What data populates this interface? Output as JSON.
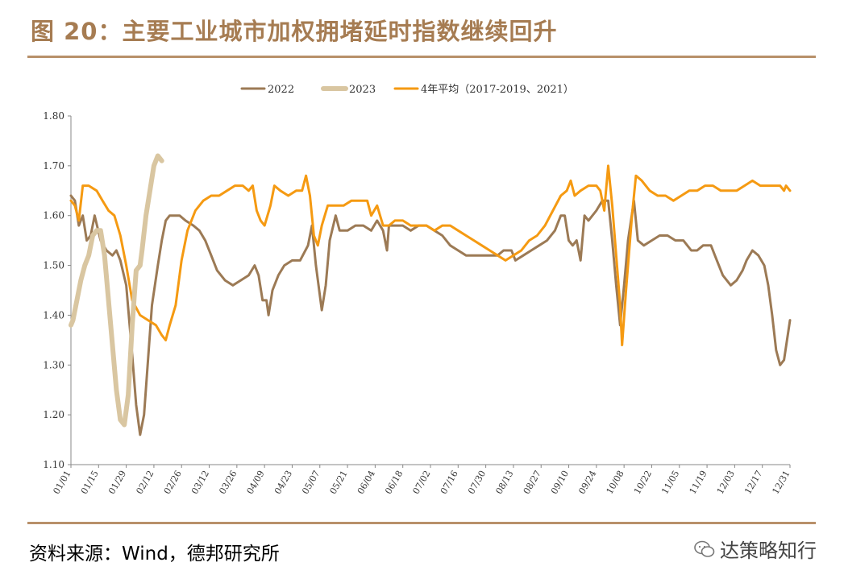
{
  "header": {
    "title": "图 20：主要工业城市加权拥堵延时指数继续回升"
  },
  "footer": {
    "source": "资料来源：Wind，德邦研究所",
    "watermark": "达策略知行"
  },
  "chart_data": {
    "type": "line",
    "xlabel": "",
    "ylabel": "",
    "ylim": [
      1.1,
      1.8
    ],
    "yticks": [
      "1.10",
      "1.20",
      "1.30",
      "1.40",
      "1.50",
      "1.60",
      "1.70",
      "1.80"
    ],
    "x_domain": [
      "01/01",
      "12/31"
    ],
    "x_ticks": [
      "01/01",
      "01/15",
      "01/29",
      "02/12",
      "02/26",
      "03/12",
      "03/26",
      "04/09",
      "04/23",
      "05/07",
      "05/21",
      "06/04",
      "06/18",
      "07/02",
      "07/16",
      "07/30",
      "08/13",
      "08/27",
      "09/10",
      "09/24",
      "10/08",
      "10/22",
      "11/05",
      "11/19",
      "12/03",
      "12/17",
      "12/31"
    ],
    "legend_position": "top",
    "grid": false,
    "series": [
      {
        "name": "2022",
        "color": "#9c7a55",
        "points": [
          [
            "01/01",
            1.64
          ],
          [
            "01/03",
            1.63
          ],
          [
            "01/05",
            1.58
          ],
          [
            "01/07",
            1.6
          ],
          [
            "01/09",
            1.55
          ],
          [
            "01/11",
            1.56
          ],
          [
            "01/13",
            1.6
          ],
          [
            "01/16",
            1.55
          ],
          [
            "01/19",
            1.53
          ],
          [
            "01/22",
            1.52
          ],
          [
            "01/24",
            1.53
          ],
          [
            "01/26",
            1.51
          ],
          [
            "01/29",
            1.46
          ],
          [
            "02/01",
            1.32
          ],
          [
            "02/03",
            1.22
          ],
          [
            "02/05",
            1.16
          ],
          [
            "02/07",
            1.2
          ],
          [
            "02/09",
            1.31
          ],
          [
            "02/11",
            1.42
          ],
          [
            "02/14",
            1.5
          ],
          [
            "02/16",
            1.55
          ],
          [
            "02/18",
            1.59
          ],
          [
            "02/20",
            1.6
          ],
          [
            "02/22",
            1.6
          ],
          [
            "02/25",
            1.6
          ],
          [
            "02/28",
            1.59
          ],
          [
            "03/04",
            1.58
          ],
          [
            "03/07",
            1.57
          ],
          [
            "03/10",
            1.55
          ],
          [
            "03/13",
            1.52
          ],
          [
            "03/16",
            1.49
          ],
          [
            "03/20",
            1.47
          ],
          [
            "03/24",
            1.46
          ],
          [
            "03/28",
            1.47
          ],
          [
            "04/01",
            1.48
          ],
          [
            "04/04",
            1.5
          ],
          [
            "04/06",
            1.48
          ],
          [
            "04/08",
            1.43
          ],
          [
            "04/10",
            1.43
          ],
          [
            "04/11",
            1.4
          ],
          [
            "04/13",
            1.45
          ],
          [
            "04/16",
            1.48
          ],
          [
            "04/19",
            1.5
          ],
          [
            "04/23",
            1.51
          ],
          [
            "04/27",
            1.51
          ],
          [
            "05/01",
            1.54
          ],
          [
            "05/03",
            1.58
          ],
          [
            "05/05",
            1.5
          ],
          [
            "05/08",
            1.41
          ],
          [
            "05/10",
            1.46
          ],
          [
            "05/12",
            1.55
          ],
          [
            "05/15",
            1.6
          ],
          [
            "05/17",
            1.57
          ],
          [
            "05/21",
            1.57
          ],
          [
            "05/25",
            1.58
          ],
          [
            "05/29",
            1.58
          ],
          [
            "06/02",
            1.57
          ],
          [
            "06/05",
            1.59
          ],
          [
            "06/08",
            1.57
          ],
          [
            "06/10",
            1.53
          ],
          [
            "06/11",
            1.58
          ],
          [
            "06/14",
            1.58
          ],
          [
            "06/18",
            1.58
          ],
          [
            "06/22",
            1.57
          ],
          [
            "06/26",
            1.58
          ],
          [
            "06/30",
            1.58
          ],
          [
            "07/04",
            1.57
          ],
          [
            "07/08",
            1.56
          ],
          [
            "07/12",
            1.54
          ],
          [
            "07/16",
            1.53
          ],
          [
            "07/20",
            1.52
          ],
          [
            "07/24",
            1.52
          ],
          [
            "07/28",
            1.52
          ],
          [
            "08/01",
            1.52
          ],
          [
            "08/05",
            1.52
          ],
          [
            "08/08",
            1.53
          ],
          [
            "08/10",
            1.53
          ],
          [
            "08/12",
            1.53
          ],
          [
            "08/14",
            1.51
          ],
          [
            "08/18",
            1.52
          ],
          [
            "08/22",
            1.53
          ],
          [
            "08/26",
            1.54
          ],
          [
            "08/30",
            1.55
          ],
          [
            "09/03",
            1.57
          ],
          [
            "09/06",
            1.6
          ],
          [
            "09/08",
            1.6
          ],
          [
            "09/10",
            1.55
          ],
          [
            "09/12",
            1.54
          ],
          [
            "09/14",
            1.55
          ],
          [
            "09/16",
            1.51
          ],
          [
            "09/18",
            1.6
          ],
          [
            "09/20",
            1.59
          ],
          [
            "09/24",
            1.61
          ],
          [
            "09/27",
            1.63
          ],
          [
            "09/30",
            1.63
          ],
          [
            "10/02",
            1.55
          ],
          [
            "10/04",
            1.46
          ],
          [
            "10/06",
            1.38
          ],
          [
            "10/08",
            1.46
          ],
          [
            "10/10",
            1.55
          ],
          [
            "10/13",
            1.63
          ],
          [
            "10/15",
            1.55
          ],
          [
            "10/18",
            1.54
          ],
          [
            "10/22",
            1.55
          ],
          [
            "10/26",
            1.56
          ],
          [
            "10/30",
            1.56
          ],
          [
            "11/03",
            1.55
          ],
          [
            "11/07",
            1.55
          ],
          [
            "11/11",
            1.53
          ],
          [
            "11/14",
            1.53
          ],
          [
            "11/17",
            1.54
          ],
          [
            "11/21",
            1.54
          ],
          [
            "11/24",
            1.51
          ],
          [
            "11/27",
            1.48
          ],
          [
            "12/01",
            1.46
          ],
          [
            "12/04",
            1.47
          ],
          [
            "12/07",
            1.49
          ],
          [
            "12/09",
            1.51
          ],
          [
            "12/12",
            1.53
          ],
          [
            "12/15",
            1.52
          ],
          [
            "12/18",
            1.5
          ],
          [
            "12/20",
            1.46
          ],
          [
            "12/22",
            1.4
          ],
          [
            "12/24",
            1.33
          ],
          [
            "12/26",
            1.3
          ],
          [
            "12/28",
            1.31
          ],
          [
            "12/31",
            1.39
          ]
        ]
      },
      {
        "name": "2023",
        "color": "#d9c6a1",
        "points": [
          [
            "01/01",
            1.38
          ],
          [
            "01/02",
            1.39
          ],
          [
            "01/04",
            1.43
          ],
          [
            "01/06",
            1.47
          ],
          [
            "01/08",
            1.5
          ],
          [
            "01/10",
            1.52
          ],
          [
            "01/12",
            1.56
          ],
          [
            "01/14",
            1.57
          ],
          [
            "01/16",
            1.57
          ],
          [
            "01/18",
            1.52
          ],
          [
            "01/20",
            1.43
          ],
          [
            "01/22",
            1.34
          ],
          [
            "01/24",
            1.25
          ],
          [
            "01/26",
            1.19
          ],
          [
            "01/28",
            1.18
          ],
          [
            "01/30",
            1.24
          ],
          [
            "02/01",
            1.38
          ],
          [
            "02/03",
            1.49
          ],
          [
            "02/05",
            1.5
          ],
          [
            "02/06",
            1.53
          ],
          [
            "02/08",
            1.6
          ],
          [
            "02/10",
            1.65
          ],
          [
            "02/12",
            1.7
          ],
          [
            "02/14",
            1.72
          ],
          [
            "02/16",
            1.71
          ]
        ]
      },
      {
        "name": "4年平均（2017-2019、2021）",
        "color": "#f59a12",
        "points": [
          [
            "01/01",
            1.63
          ],
          [
            "01/03",
            1.62
          ],
          [
            "01/05",
            1.59
          ],
          [
            "01/07",
            1.66
          ],
          [
            "01/10",
            1.66
          ],
          [
            "01/14",
            1.65
          ],
          [
            "01/17",
            1.63
          ],
          [
            "01/20",
            1.61
          ],
          [
            "01/23",
            1.6
          ],
          [
            "01/26",
            1.56
          ],
          [
            "01/29",
            1.5
          ],
          [
            "02/01",
            1.43
          ],
          [
            "02/05",
            1.4
          ],
          [
            "02/09",
            1.39
          ],
          [
            "02/13",
            1.38
          ],
          [
            "02/16",
            1.36
          ],
          [
            "02/18",
            1.35
          ],
          [
            "02/20",
            1.38
          ],
          [
            "02/23",
            1.42
          ],
          [
            "02/26",
            1.51
          ],
          [
            "03/01",
            1.57
          ],
          [
            "03/05",
            1.61
          ],
          [
            "03/09",
            1.63
          ],
          [
            "03/13",
            1.64
          ],
          [
            "03/17",
            1.64
          ],
          [
            "03/21",
            1.65
          ],
          [
            "03/25",
            1.66
          ],
          [
            "03/29",
            1.66
          ],
          [
            "04/01",
            1.65
          ],
          [
            "04/03",
            1.66
          ],
          [
            "04/05",
            1.61
          ],
          [
            "04/07",
            1.59
          ],
          [
            "04/09",
            1.58
          ],
          [
            "04/12",
            1.62
          ],
          [
            "04/14",
            1.66
          ],
          [
            "04/17",
            1.65
          ],
          [
            "04/21",
            1.64
          ],
          [
            "04/25",
            1.65
          ],
          [
            "04/28",
            1.65
          ],
          [
            "04/30",
            1.68
          ],
          [
            "05/02",
            1.64
          ],
          [
            "05/04",
            1.56
          ],
          [
            "05/06",
            1.54
          ],
          [
            "05/08",
            1.58
          ],
          [
            "05/11",
            1.62
          ],
          [
            "05/15",
            1.62
          ],
          [
            "05/19",
            1.62
          ],
          [
            "05/23",
            1.63
          ],
          [
            "05/27",
            1.63
          ],
          [
            "05/31",
            1.63
          ],
          [
            "06/02",
            1.6
          ],
          [
            "06/05",
            1.62
          ],
          [
            "06/08",
            1.58
          ],
          [
            "06/11",
            1.58
          ],
          [
            "06/14",
            1.59
          ],
          [
            "06/18",
            1.59
          ],
          [
            "06/22",
            1.58
          ],
          [
            "06/26",
            1.58
          ],
          [
            "06/30",
            1.58
          ],
          [
            "07/04",
            1.57
          ],
          [
            "07/08",
            1.58
          ],
          [
            "07/12",
            1.58
          ],
          [
            "07/16",
            1.57
          ],
          [
            "07/20",
            1.56
          ],
          [
            "07/24",
            1.55
          ],
          [
            "07/28",
            1.54
          ],
          [
            "08/01",
            1.53
          ],
          [
            "08/05",
            1.52
          ],
          [
            "08/09",
            1.51
          ],
          [
            "08/13",
            1.52
          ],
          [
            "08/17",
            1.53
          ],
          [
            "08/21",
            1.55
          ],
          [
            "08/25",
            1.56
          ],
          [
            "08/29",
            1.58
          ],
          [
            "09/02",
            1.61
          ],
          [
            "09/06",
            1.64
          ],
          [
            "09/09",
            1.65
          ],
          [
            "09/11",
            1.67
          ],
          [
            "09/13",
            1.64
          ],
          [
            "09/16",
            1.65
          ],
          [
            "09/20",
            1.66
          ],
          [
            "09/24",
            1.66
          ],
          [
            "09/26",
            1.65
          ],
          [
            "09/28",
            1.61
          ],
          [
            "09/30",
            1.7
          ],
          [
            "10/02",
            1.62
          ],
          [
            "10/04",
            1.52
          ],
          [
            "10/06",
            1.42
          ],
          [
            "10/07",
            1.34
          ],
          [
            "10/09",
            1.45
          ],
          [
            "10/12",
            1.6
          ],
          [
            "10/14",
            1.68
          ],
          [
            "10/17",
            1.67
          ],
          [
            "10/21",
            1.65
          ],
          [
            "10/25",
            1.64
          ],
          [
            "10/29",
            1.64
          ],
          [
            "11/02",
            1.63
          ],
          [
            "11/06",
            1.64
          ],
          [
            "11/10",
            1.65
          ],
          [
            "11/14",
            1.65
          ],
          [
            "11/18",
            1.66
          ],
          [
            "11/22",
            1.66
          ],
          [
            "11/26",
            1.65
          ],
          [
            "11/30",
            1.65
          ],
          [
            "12/04",
            1.65
          ],
          [
            "12/08",
            1.66
          ],
          [
            "12/12",
            1.67
          ],
          [
            "12/16",
            1.66
          ],
          [
            "12/20",
            1.66
          ],
          [
            "12/24",
            1.66
          ],
          [
            "12/26",
            1.66
          ],
          [
            "12/28",
            1.65
          ],
          [
            "12/29",
            1.66
          ],
          [
            "12/31",
            1.65
          ]
        ]
      }
    ]
  }
}
